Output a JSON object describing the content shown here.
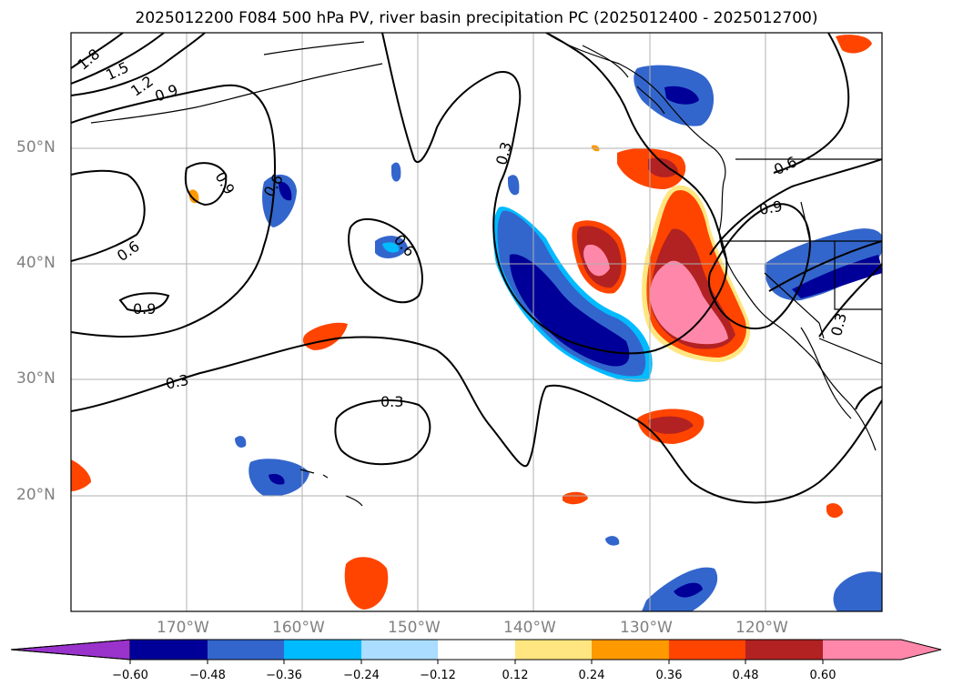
{
  "title": "2025012200 F084 500 hPa PV, river basin precipitation PC (2025012400 - 2025012700)",
  "lat_labels": [
    "50°N",
    "40°N",
    "30°N",
    "20°N"
  ],
  "lon_labels": [
    "170°W",
    "160°W",
    "150°W",
    "140°W",
    "130°W",
    "120°W"
  ],
  "contour_labels": [
    "1.8",
    "1.5",
    "1.2",
    "0.9",
    "0.9",
    "0.6",
    "0.6",
    "0.9",
    "0.3",
    "0.3",
    "0.3",
    "0.6",
    "0.6",
    "0.9",
    "0.3"
  ],
  "colorbar": {
    "ticks": [
      "−0.60",
      "−0.48",
      "−0.36",
      "−0.24",
      "−0.12",
      "0.12",
      "0.24",
      "0.36",
      "0.48",
      "0.60"
    ],
    "colors": [
      "#9933cc",
      "#000099",
      "#3366cc",
      "#00bbff",
      "#aaddff",
      "#ffffff",
      "#ffe680",
      "#ff9900",
      "#ff4400",
      "#b22222",
      "#ff88aa"
    ]
  }
}
